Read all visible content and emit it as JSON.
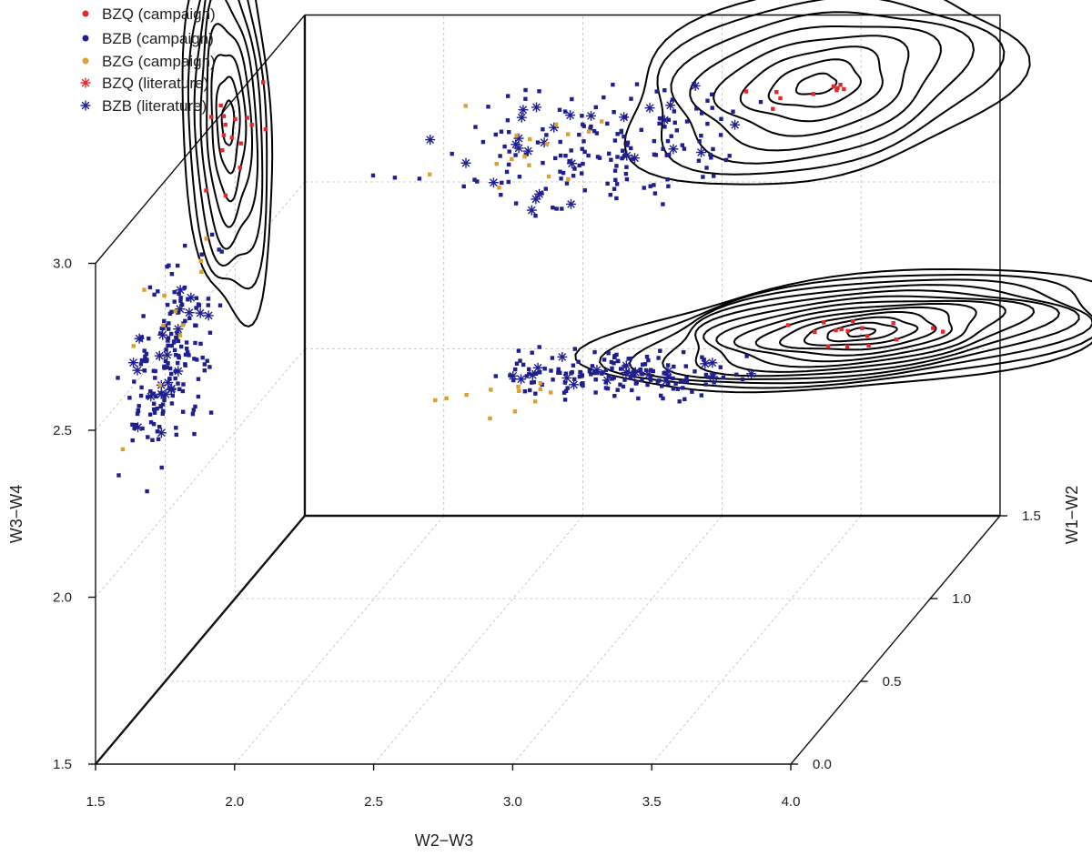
{
  "chart_data": {
    "type": "scatter",
    "subtype": "3d-projection-with-density-contours",
    "title": "",
    "xlabel": "W2−W3",
    "ylabel": "W3−W4",
    "zlabel": "W1−W2",
    "xlim": [
      1.5,
      4.0
    ],
    "ylim": [
      1.5,
      3.0
    ],
    "zlim": [
      0.0,
      1.5
    ],
    "x_ticks": [
      "1.5",
      "2.0",
      "2.5",
      "3.0",
      "3.5",
      "4.0"
    ],
    "y_ticks": [
      "1.5",
      "2.0",
      "2.5",
      "3.0"
    ],
    "z_ticks": [
      "0.0",
      "0.5",
      "1.0",
      "1.5"
    ],
    "grid": true,
    "legend_position": "top-left",
    "colors": {
      "bzq": "#e8262a",
      "bzb": "#1f1f8f",
      "bzg": "#d9a032",
      "contour": "#000000",
      "grid": "#bdbdbd"
    },
    "series": [
      {
        "name": "BZQ (campaign)",
        "marker": "dot",
        "color": "#e8262a"
      },
      {
        "name": "BZB (campaign)",
        "marker": "dot",
        "color": "#1f1f8f"
      },
      {
        "name": "BZG (campaign)",
        "marker": "dot",
        "color": "#d9a032"
      },
      {
        "name": "BZQ (literature)",
        "marker": "asterisk",
        "color": "#e8262a"
      },
      {
        "name": "BZB (literature)",
        "marker": "asterisk",
        "color": "#1f1f8f"
      }
    ],
    "density_contours": {
      "back_wall_W2W3_vs_W1W2": {
        "peak": [
          3.55,
          1.08
        ],
        "levels": 8
      },
      "floor_W2W3_vs_W3W4": {
        "peak": [
          3.5,
          2.05
        ],
        "levels": 13
      },
      "side_wall_W1W2_vs_W3W4": {
        "peak": [
          0.95,
          2.95
        ],
        "levels": 8
      }
    },
    "point_clusters": {
      "bzb_back_wall": {
        "center": [
          2.95,
          0.72
        ],
        "spread": [
          0.35,
          0.28
        ],
        "count": 190
      },
      "bzq_back_wall": {
        "center": [
          3.5,
          1.1
        ],
        "spread": [
          0.18,
          0.16
        ],
        "count": 22
      },
      "bzg_back_wall": {
        "center": [
          2.7,
          0.7
        ],
        "spread": [
          0.25,
          0.2
        ],
        "count": 16
      },
      "bzb_floor": {
        "center": [
          2.6,
          1.92
        ],
        "spread": [
          0.3,
          0.05
        ],
        "count": 170
      },
      "bzq_floor": {
        "center": [
          3.45,
          2.05
        ],
        "spread": [
          0.2,
          0.04
        ],
        "count": 16
      },
      "bzg_floor": {
        "center": [
          2.3,
          1.85
        ],
        "spread": [
          0.25,
          0.05
        ],
        "count": 12
      },
      "bzb_side_wall": {
        "center": [
          0.55,
          2.45
        ],
        "spread": [
          0.22,
          0.18
        ],
        "count": 190
      },
      "bzq_side_wall": {
        "center": [
          1.0,
          2.9
        ],
        "spread": [
          0.15,
          0.12
        ],
        "count": 16
      },
      "bzg_side_wall": {
        "center": [
          0.5,
          2.55
        ],
        "spread": [
          0.25,
          0.15
        ],
        "count": 12
      }
    }
  }
}
